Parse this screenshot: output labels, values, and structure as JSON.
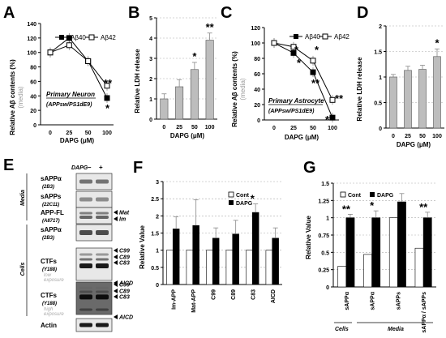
{
  "panels": {
    "A": "A",
    "B": "B",
    "C": "C",
    "D": "D",
    "E": "E",
    "F": "F",
    "G": "G"
  },
  "chart_data": [
    {
      "id": "A",
      "type": "line",
      "ylabel_main": "Relative Aβ contents (%)",
      "ylabel_sub": "(media)",
      "xlabel": "DAPG (μM)",
      "categories": [
        "0",
        "25",
        "50",
        "100"
      ],
      "yticks": [
        "0",
        "20",
        "40",
        "60",
        "80",
        "100",
        "120",
        "140"
      ],
      "ylim": [
        0,
        140
      ],
      "series": [
        {
          "name": "Aβ40",
          "values": [
            100,
            120,
            88,
            37
          ],
          "marker": "filled"
        },
        {
          "name": "Aβ42",
          "values": [
            100,
            110,
            88,
            54
          ],
          "marker": "open"
        }
      ],
      "annotation_title": "Primary Neuron",
      "annotation_sub": "(APPsw/PS1dE9)",
      "stars": [
        "**",
        "*"
      ]
    },
    {
      "id": "B",
      "type": "bar",
      "ylabel": "Relative LDH release",
      "xlabel": "DAPG (μM)",
      "categories": [
        "0",
        "25",
        "50",
        "100"
      ],
      "yticks": [
        "0",
        "1",
        "2",
        "3",
        "4",
        "5"
      ],
      "ylim": [
        0,
        5
      ],
      "values": [
        1.0,
        1.6,
        2.45,
        3.9
      ],
      "errors": [
        0.25,
        0.35,
        0.35,
        0.35
      ],
      "stars": [
        "",
        "",
        "*",
        "**"
      ]
    },
    {
      "id": "C",
      "type": "line",
      "ylabel_main": "Relative Aβ contents (%)",
      "ylabel_sub": "(media)",
      "xlabel": "DAPG (μM)",
      "categories": [
        "0",
        "25",
        "50",
        "100"
      ],
      "yticks": [
        "0",
        "20",
        "40",
        "60",
        "80",
        "100",
        "120"
      ],
      "ylim": [
        0,
        120
      ],
      "series": [
        {
          "name": "Aβ40",
          "values": [
            100,
            87,
            62,
            3
          ],
          "marker": "filled"
        },
        {
          "name": "Aβ42",
          "values": [
            100,
            95,
            77,
            26
          ],
          "marker": "open"
        }
      ],
      "annotation_title": "Primary Astrocyte",
      "annotation_sub": "(APPsw/PS1dE9)",
      "stars": [
        "*",
        "*",
        "*",
        "**",
        "**",
        "**"
      ]
    },
    {
      "id": "D",
      "type": "bar",
      "ylabel": "Relative LDH release",
      "xlabel": "DAPG (μM)",
      "categories": [
        "0",
        "25",
        "50",
        "100"
      ],
      "yticks": [
        "0",
        "0.5",
        "1",
        "1.5",
        "2"
      ],
      "ylim": [
        0,
        2
      ],
      "values": [
        1.0,
        1.13,
        1.15,
        1.4
      ],
      "errors": [
        0.05,
        0.08,
        0.08,
        0.15
      ],
      "stars": [
        "",
        "",
        "",
        "*"
      ]
    },
    {
      "id": "F",
      "type": "bar",
      "ylabel": "Relative Value",
      "categories": [
        "Im-APP",
        "Mat-APP",
        "C99",
        "C89",
        "C83",
        "AICD"
      ],
      "yticks": [
        "0",
        "0.5",
        "1",
        "1.5",
        "2",
        "2.5",
        "3"
      ],
      "ylim": [
        0,
        3
      ],
      "series": [
        {
          "name": "Cont",
          "values": [
            1,
            1,
            1,
            1,
            1,
            1
          ],
          "fill": "#ffffff"
        },
        {
          "name": "DAPG",
          "values": [
            1.62,
            1.72,
            1.35,
            1.47,
            2.1,
            1.35
          ],
          "fill": "#000000"
        }
      ],
      "errors": [
        0.35,
        0.75,
        0.3,
        0.4,
        0.25,
        0.3
      ],
      "stars": [
        "",
        "",
        "",
        "",
        "*",
        ""
      ]
    },
    {
      "id": "G",
      "type": "bar",
      "ylabel": "Relative Value",
      "categories": [
        "sAPPα",
        "sAPPα",
        "sAPPs",
        "sAPPα / sAPPs"
      ],
      "yticks": [
        "0",
        "0.25",
        "0.5",
        "0.75",
        "1",
        "1.25",
        "1.5"
      ],
      "ylim": [
        0,
        1.5
      ],
      "series": [
        {
          "name": "Cont",
          "values": [
            0.3,
            0.47,
            1.0,
            0.56
          ],
          "fill": "#ffffff"
        },
        {
          "name": "DAPG",
          "values": [
            1.0,
            1.0,
            1.23,
            1.0
          ],
          "fill": "#000000"
        }
      ],
      "errors": [
        0.05,
        0.1,
        0.12,
        0.08
      ],
      "stars": [
        "**",
        "*",
        "",
        "**"
      ],
      "groups": [
        "Cells",
        "Media"
      ]
    }
  ],
  "blot": {
    "header_label": "DAPG",
    "lane_minus": "–",
    "lane_plus": "+",
    "section_media": "Media",
    "section_cells": "Cells",
    "rows": [
      {
        "label": "sAPPα",
        "sub": "(2B3)"
      },
      {
        "label": "sAPPs",
        "sub": "(22C11)"
      },
      {
        "label": "APP-FL",
        "sub": "(A8717)",
        "right": [
          "Mat",
          "Im"
        ]
      },
      {
        "label": "sAPPα",
        "sub": "(2B3)"
      },
      {
        "label": "CTFs",
        "sub": "(Y188)",
        "note1": "low",
        "note2": "exposure",
        "right": [
          "C99",
          "C89",
          "C83",
          "AICD"
        ]
      },
      {
        "label": "CTFs",
        "sub": "(Y188)",
        "note1": "high",
        "note2": "exposure",
        "right": [
          "C99",
          "C89",
          "C83",
          "AICD"
        ]
      },
      {
        "label": "Actin"
      }
    ]
  }
}
